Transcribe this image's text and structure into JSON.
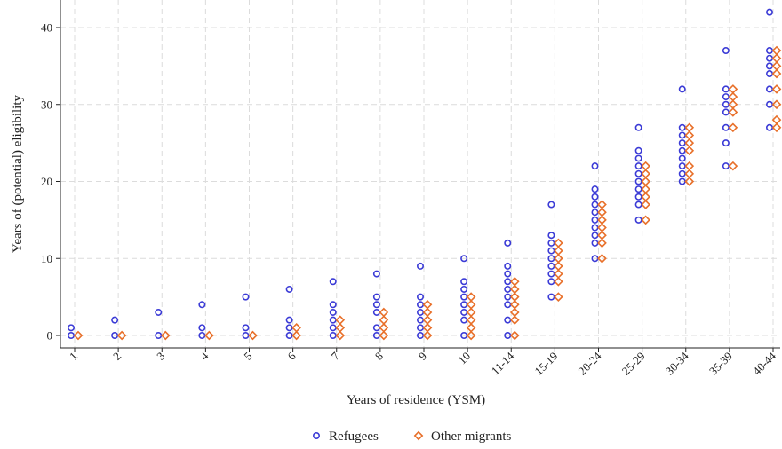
{
  "chart_data": {
    "type": "scatter",
    "xlabel": "Years of residence (YSM)",
    "ylabel": "Years of (potential) eligibility",
    "categories": [
      "1",
      "2",
      "3",
      "4",
      "5",
      "6",
      "7",
      "8",
      "9",
      "10",
      "11-14",
      "15-19",
      "20-24",
      "25-29",
      "30-34",
      "35-39",
      "40-44"
    ],
    "ylim": [
      -2,
      44
    ],
    "yticks": [
      0,
      10,
      20,
      30,
      40
    ],
    "grid": true,
    "legend_position": "bottom",
    "series": [
      {
        "name": "Refugees",
        "color": "#3b3bd6",
        "marker": "circle",
        "points": [
          [
            0,
            [
              0,
              1
            ]
          ],
          [
            1,
            [
              0,
              2
            ]
          ],
          [
            2,
            [
              0,
              3
            ]
          ],
          [
            3,
            [
              0,
              1,
              4
            ]
          ],
          [
            4,
            [
              0,
              1,
              5
            ]
          ],
          [
            5,
            [
              0,
              1,
              2,
              6
            ]
          ],
          [
            6,
            [
              0,
              1,
              2,
              3,
              4,
              7
            ]
          ],
          [
            7,
            [
              0,
              1,
              3,
              4,
              5,
              8
            ]
          ],
          [
            8,
            [
              0,
              1,
              2,
              3,
              4,
              5,
              9
            ]
          ],
          [
            9,
            [
              0,
              2,
              3,
              4,
              5,
              6,
              7,
              10
            ]
          ],
          [
            10,
            [
              0,
              2,
              4,
              5,
              6,
              7,
              8,
              9,
              12
            ]
          ],
          [
            11,
            [
              5,
              7,
              8,
              9,
              10,
              11,
              12,
              13,
              17
            ]
          ],
          [
            12,
            [
              10,
              12,
              13,
              14,
              15,
              16,
              17,
              18,
              19,
              22
            ]
          ],
          [
            13,
            [
              15,
              17,
              18,
              19,
              20,
              21,
              22,
              23,
              24,
              27
            ]
          ],
          [
            14,
            [
              20,
              21,
              22,
              23,
              24,
              25,
              26,
              27,
              32
            ]
          ],
          [
            15,
            [
              22,
              25,
              27,
              29,
              30,
              31,
              32,
              37
            ]
          ],
          [
            16,
            [
              27,
              30,
              32,
              34,
              35,
              36,
              37,
              42
            ]
          ]
        ]
      },
      {
        "name": "Other migrants",
        "color": "#e8702a",
        "marker": "diamond",
        "points": [
          [
            0,
            [
              0
            ]
          ],
          [
            1,
            [
              0
            ]
          ],
          [
            2,
            [
              0
            ]
          ],
          [
            3,
            [
              0
            ]
          ],
          [
            4,
            [
              0
            ]
          ],
          [
            5,
            [
              0,
              1
            ]
          ],
          [
            6,
            [
              0,
              1,
              2
            ]
          ],
          [
            7,
            [
              0,
              1,
              2,
              3
            ]
          ],
          [
            8,
            [
              0,
              1,
              2,
              3,
              4
            ]
          ],
          [
            9,
            [
              0,
              1,
              2,
              3,
              4,
              5
            ]
          ],
          [
            10,
            [
              0,
              2,
              3,
              4,
              5,
              6,
              7
            ]
          ],
          [
            11,
            [
              5,
              7,
              8,
              9,
              10,
              11,
              12
            ]
          ],
          [
            12,
            [
              10,
              12,
              13,
              14,
              15,
              16,
              17
            ]
          ],
          [
            13,
            [
              15,
              17,
              18,
              19,
              20,
              21,
              22
            ]
          ],
          [
            14,
            [
              20,
              21,
              22,
              24,
              25,
              26,
              27
            ]
          ],
          [
            15,
            [
              22,
              27,
              29,
              30,
              31,
              32
            ]
          ],
          [
            16,
            [
              27,
              28,
              30,
              32,
              34,
              35,
              36,
              37
            ]
          ]
        ]
      }
    ]
  }
}
